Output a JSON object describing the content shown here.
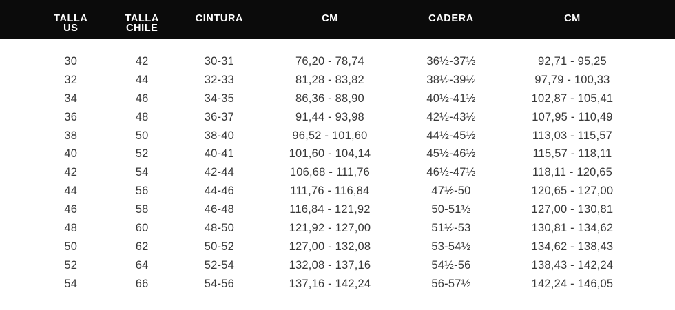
{
  "colors": {
    "header_bg": "#0b0b0b",
    "header_text": "#ffffff",
    "body_bg": "#ffffff",
    "body_text": "#383838"
  },
  "header": {
    "columns": [
      {
        "line1": "TALLA",
        "line2": "US"
      },
      {
        "line1": "TALLA",
        "line2": "CHILE"
      },
      {
        "line1": "CINTURA",
        "line2": ""
      },
      {
        "line1": "CM",
        "line2": ""
      },
      {
        "line1": "CADERA",
        "line2": ""
      },
      {
        "line1": "CM",
        "line2": ""
      }
    ]
  },
  "chart_data": {
    "type": "table",
    "title": "",
    "columns": [
      "TALLA US",
      "TALLA CHILE",
      "CINTURA",
      "CM",
      "CADERA",
      "CM"
    ],
    "rows": [
      [
        "30",
        "42",
        "30-31",
        "76,20 - 78,74",
        "36½-37½",
        "92,71 - 95,25"
      ],
      [
        "32",
        "44",
        "32-33",
        "81,28 - 83,82",
        "38½-39½",
        "97,79 - 100,33"
      ],
      [
        "34",
        "46",
        "34-35",
        "86,36 - 88,90",
        "40½-41½",
        "102,87 - 105,41"
      ],
      [
        "36",
        "48",
        "36-37",
        "91,44 - 93,98",
        "42½-43½",
        "107,95 - 110,49"
      ],
      [
        "38",
        "50",
        "38-40",
        "96,52 - 101,60",
        "44½-45½",
        "113,03 - 115,57"
      ],
      [
        "40",
        "52",
        "40-41",
        "101,60 - 104,14",
        "45½-46½",
        "115,57 - 118,11"
      ],
      [
        "42",
        "54",
        "42-44",
        "106,68 - 111,76",
        "46½-47½",
        "118,11 - 120,65"
      ],
      [
        "44",
        "56",
        "44-46",
        "111,76 - 116,84",
        "47½-50",
        "120,65 - 127,00"
      ],
      [
        "46",
        "58",
        "46-48",
        "116,84 - 121,92",
        "50-51½",
        "127,00 - 130,81"
      ],
      [
        "48",
        "60",
        "48-50",
        "121,92 - 127,00",
        "51½-53",
        "130,81 - 134,62"
      ],
      [
        "50",
        "62",
        "50-52",
        "127,00 - 132,08",
        "53-54½",
        "134,62 - 138,43"
      ],
      [
        "52",
        "64",
        "52-54",
        "132,08 - 137,16",
        "54½-56",
        "138,43 - 142,24"
      ],
      [
        "54",
        "66",
        "54-56",
        "137,16 - 142,24",
        "56-57½",
        "142,24 - 146,05"
      ]
    ]
  }
}
